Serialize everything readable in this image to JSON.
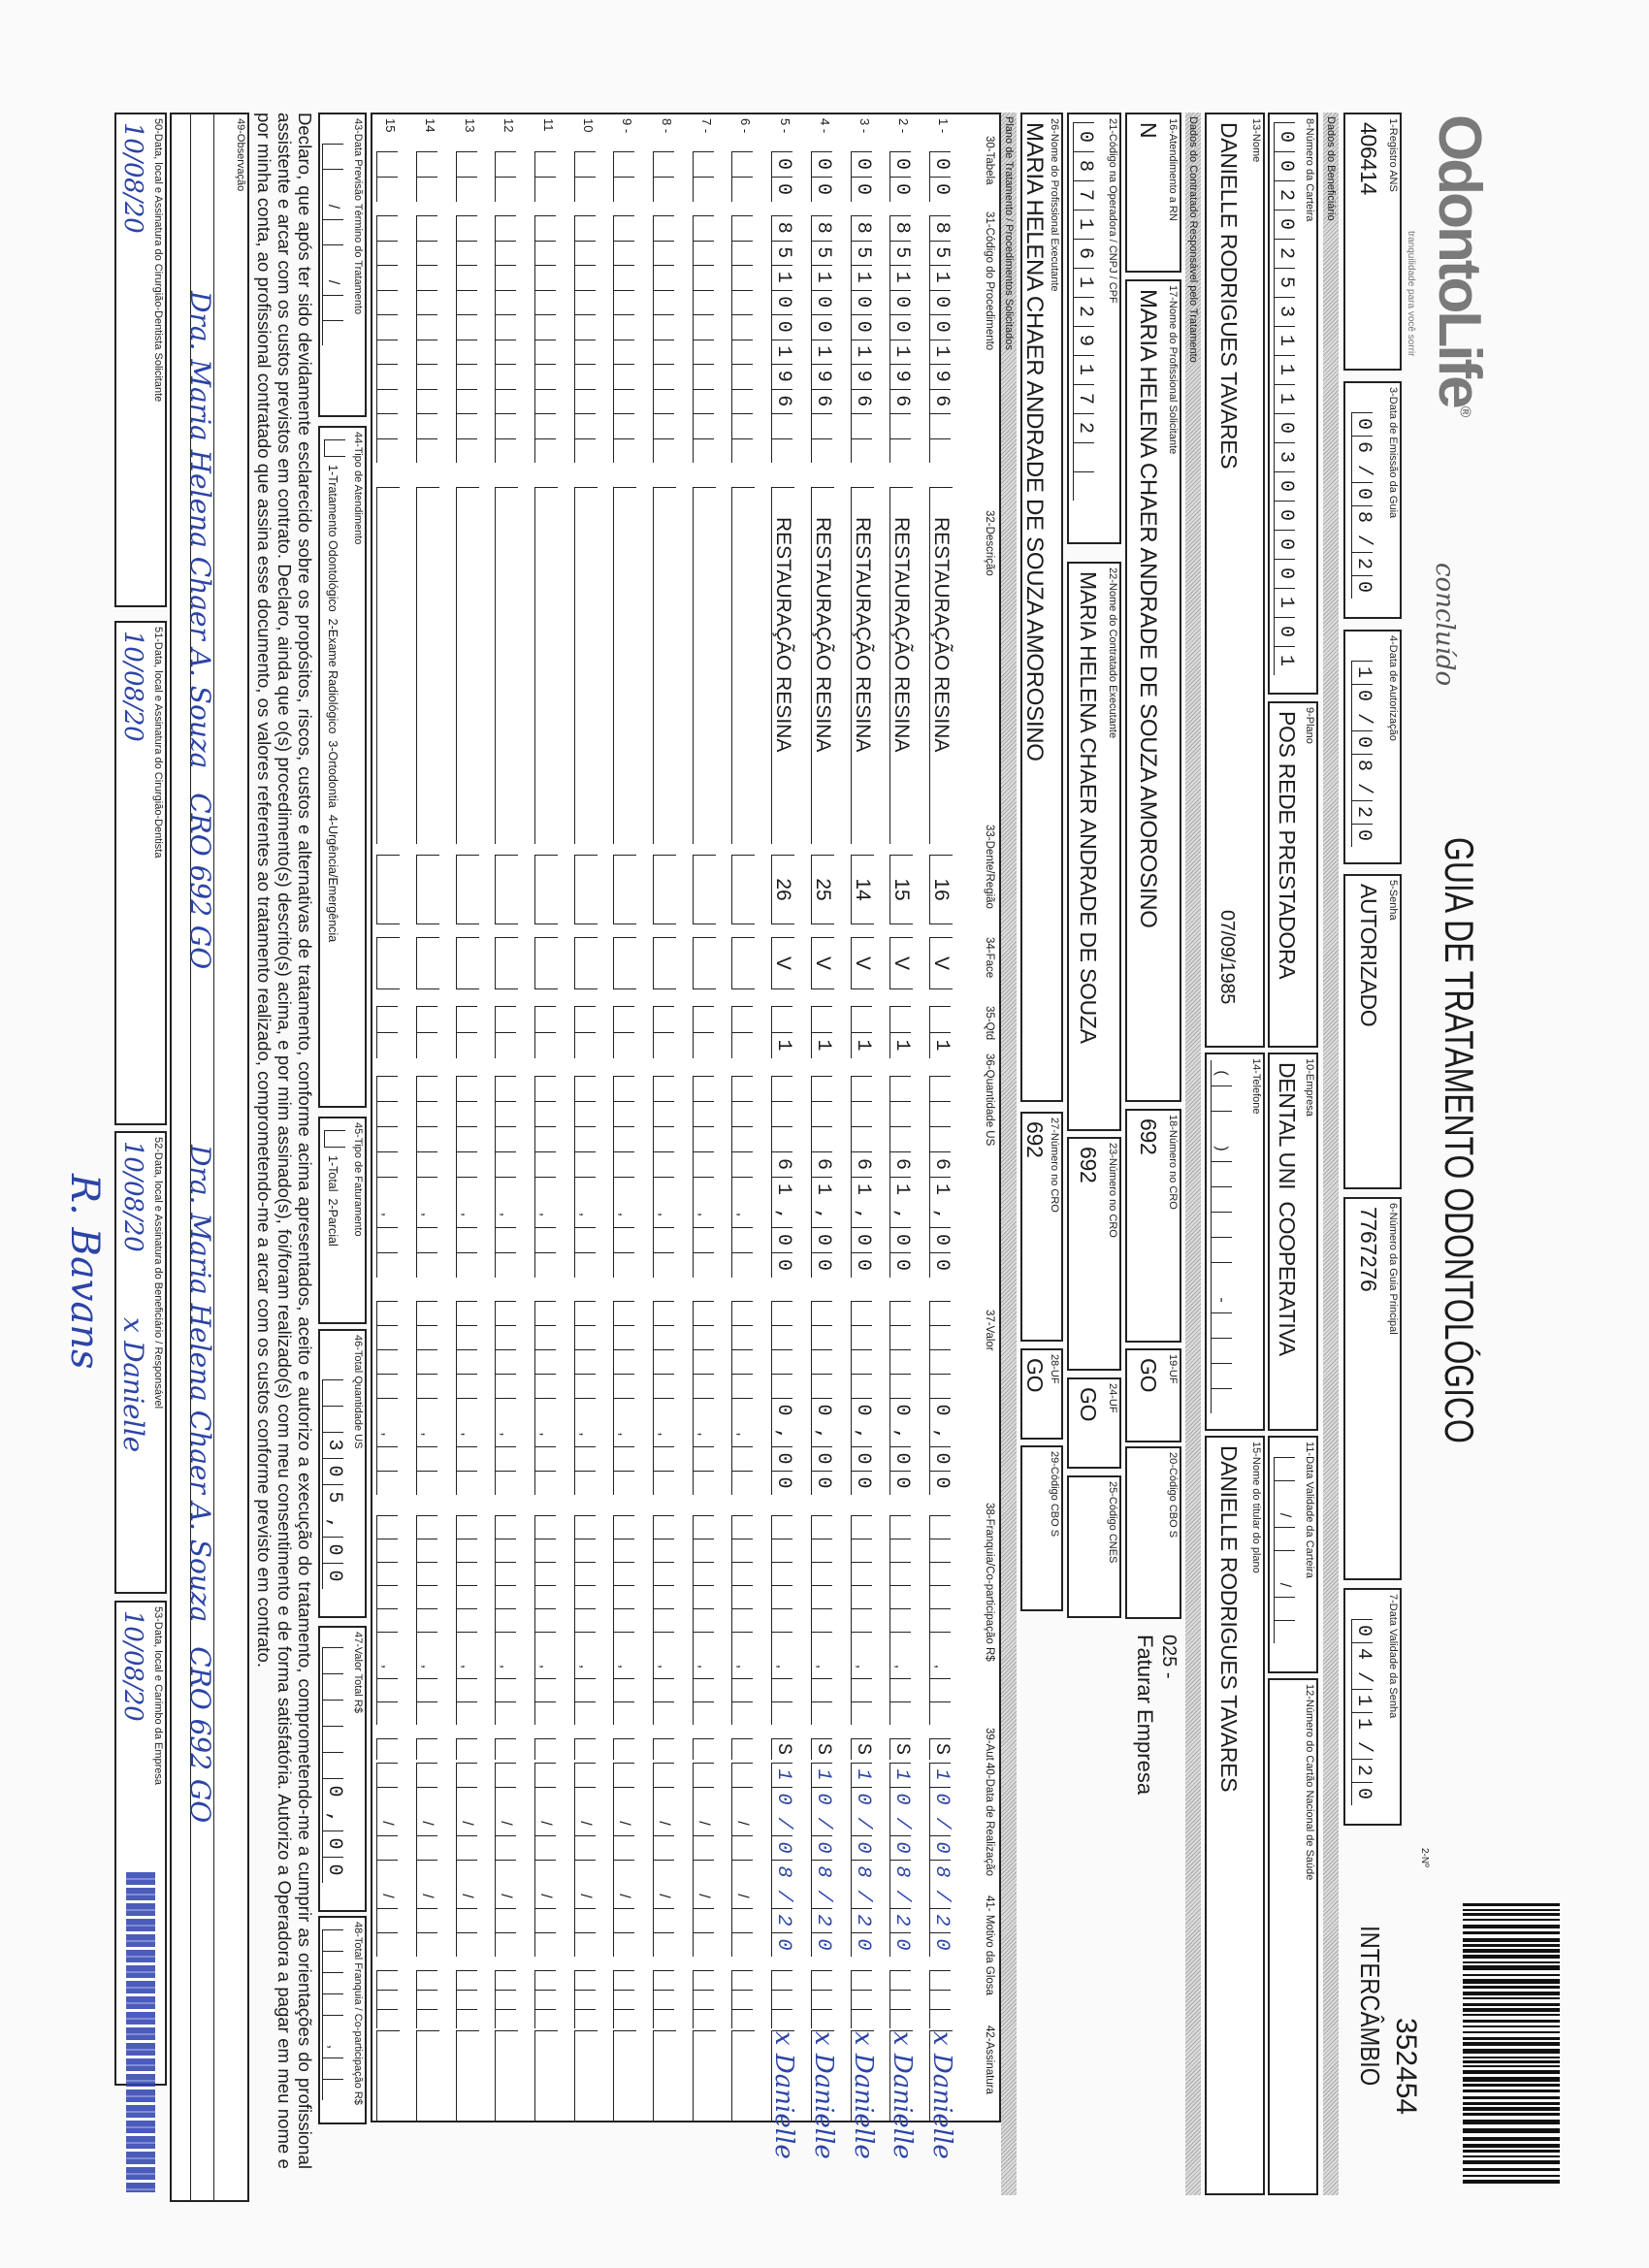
{
  "header": {
    "brand": "OdontoLife",
    "brand_mark": "®",
    "tagline": "tranquilidade para você sorrir",
    "annotation": "concluído",
    "title": "GUIA DE TRATAMENTO ODONTOLÓGICO",
    "guide_no_label": "2-Nº",
    "guide_no": "352454",
    "guide_type": "INTERCÂMBIO"
  },
  "guide": {
    "ans": {
      "label": "1-Registro ANS",
      "value": "406414"
    },
    "issue_date": {
      "label": "3-Data de Emissão da Guia",
      "value": "06/08/20"
    },
    "auth_date": {
      "label": "4-Data de Autorização",
      "value": "10/08/20"
    },
    "password": {
      "label": "5-Senha",
      "value": "AUTORIZADO"
    },
    "main_guide": {
      "label": "6-Número da Guia Principal",
      "value": "7767276"
    },
    "password_valid": {
      "label": "7-Data Validade da Senha",
      "value": "04/11/20"
    }
  },
  "beneficiary": {
    "section": "Dados do Beneficiário",
    "card": {
      "label": "8-Número da Carteira",
      "value": "0020253111030000101"
    },
    "plan": {
      "label": "9-Plano",
      "value": "POS REDE PRESTADORA"
    },
    "company": {
      "label": "10-Empresa",
      "value": "DENTAL UNI  COOPERATIVA"
    },
    "card_valid": {
      "label": "11-Data Validade da Carteira",
      "value": ""
    },
    "cns": {
      "label": "12-Número do Cartão Nacional de Saúde",
      "value": ""
    },
    "name": {
      "label": "13-Nome",
      "value": "DANIELLE RODRIGUES TAVARES",
      "birth": "07/09/1985"
    },
    "phone": {
      "label": "14-Telefone",
      "value": ""
    },
    "holder": {
      "label": "15-Nome do titular do plano",
      "value": "DANIELLE RODRIGUES TAVARES"
    }
  },
  "provider": {
    "section": "Dados do Contratado Responsável pelo Tratamento",
    "rn": {
      "label": "16-Atendimento a RN",
      "value": "N"
    },
    "requester": {
      "label": "17-Nome do Profissional Solicitante",
      "value": "MARIA HELENA CHAER ANDRADE DE SOUZA AMOROSINO"
    },
    "cro1": {
      "label": "18-Número no CRO",
      "value": "692"
    },
    "uf1": {
      "label": "19-UF",
      "value": "GO"
    },
    "cbo1": {
      "label": "20-Código CBO S",
      "value": ""
    },
    "billing_code": "025 -",
    "billing_note": "Faturar Empresa",
    "operator_code": {
      "label": "21-Código na Operadora / CNPJ / CPF",
      "value": "08716129172"
    },
    "executor": {
      "label": "22-Nome do Contratado Executante",
      "value": "MARIA HELENA CHAER ANDRADE DE SOUZA"
    },
    "cro2": {
      "label": "23-Número no CRO",
      "value": "692"
    },
    "uf2": {
      "label": "24-UF",
      "value": "GO"
    },
    "cnes": {
      "label": "25-Código CNES",
      "value": ""
    },
    "professional": {
      "label": "26-Nome do Profissional Executante",
      "value": "MARIA HELENA CHAER ANDRADE DE SOUZA AMOROSINO"
    },
    "cro3": {
      "label": "27-Número no CRO",
      "value": "692"
    },
    "uf3": {
      "label": "28-UF",
      "value": "GO"
    },
    "cbo3": {
      "label": "29-Código CBO S",
      "value": ""
    }
  },
  "plan": {
    "section": "Plano de Tratamento / Procedimentos Solicitados",
    "columns": [
      "30-Tabela",
      "31-Código do Procedimento",
      "32-Descrição",
      "33-Dente/Região",
      "34-Face",
      "35-Qtd",
      "36-Quantidade US",
      "37-Valor",
      "38-Franquia/Co-participação R$",
      "39-Aut",
      "40-Data de Realização",
      "41- Motivo da Glosa",
      "42-Assinatura"
    ],
    "rows": [
      {
        "n": "1 -",
        "table": "00",
        "code": "85100196",
        "desc": "RESTAURAÇÃO RESINA",
        "tooth": "16",
        "face": "V",
        "qty": "1",
        "us": "61,00",
        "value": "0,00",
        "copay": "",
        "aut": "S",
        "date": "10/08/20",
        "sign": "x Danielle"
      },
      {
        "n": "2 -",
        "table": "00",
        "code": "85100196",
        "desc": "RESTAURAÇÃO RESINA",
        "tooth": "15",
        "face": "V",
        "qty": "1",
        "us": "61,00",
        "value": "0,00",
        "copay": "",
        "aut": "S",
        "date": "10/08/20",
        "sign": "x Danielle"
      },
      {
        "n": "3 -",
        "table": "00",
        "code": "85100196",
        "desc": "RESTAURAÇÃO RESINA",
        "tooth": "14",
        "face": "V",
        "qty": "1",
        "us": "61,00",
        "value": "0,00",
        "copay": "",
        "aut": "S",
        "date": "10/08/20",
        "sign": "x Danielle"
      },
      {
        "n": "4 -",
        "table": "00",
        "code": "85100196",
        "desc": "RESTAURAÇÃO RESINA",
        "tooth": "25",
        "face": "V",
        "qty": "1",
        "us": "61,00",
        "value": "0,00",
        "copay": "",
        "aut": "S",
        "date": "10/08/20",
        "sign": "x Danielle"
      },
      {
        "n": "5 -",
        "table": "00",
        "code": "85100196",
        "desc": "RESTAURAÇÃO RESINA",
        "tooth": "26",
        "face": "V",
        "qty": "1",
        "us": "61,00",
        "value": "0,00",
        "copay": "",
        "aut": "S",
        "date": "10/08/20",
        "sign": "x Danielle"
      },
      {
        "n": "6 -"
      },
      {
        "n": "7 -"
      },
      {
        "n": "8 -"
      },
      {
        "n": "9 -"
      },
      {
        "n": "10"
      },
      {
        "n": "11"
      },
      {
        "n": "12"
      },
      {
        "n": "13"
      },
      {
        "n": "14"
      },
      {
        "n": "15"
      }
    ]
  },
  "totals": {
    "end_date": {
      "label": "43-Data Previsão Término do Tratamento",
      "value": ""
    },
    "service_type": {
      "label": "44-Tipo de Atendimento",
      "options": "1-Tratamento Odontológico  2-Exame Radiológico  3-Ortodontia  4-Urgência/Emergência"
    },
    "billing_type": {
      "label": "45-Tipo de Faturamento",
      "options": "1-Total  2-Parcial"
    },
    "total_us": {
      "label": "46-Total Quantidade US",
      "value": "305,00"
    },
    "total_value": {
      "label": "47-Valor Total R$",
      "value": "0,00"
    },
    "total_copay": {
      "label": "48-Total Franquia / Co-participação R$",
      "value": ""
    }
  },
  "declaration": "Declaro, que após ter sido devidamente esclarecido sobre os propósitos, riscos, custos e alternativas de tratamento, conforme acima apresentados, aceito e autorizo a execução do tratamento, comprometendo-me a cumprir as orientações do profissional assistente e arcar com os custos previstos em contrato. Declaro, ainda que o(s) procedimento(s) descrito(s) acima, e por mim assinado(s), foi/foram realizado(s) com meu consentimento e de forma satisfatória. Autorizo a Operadora a pagar em meu nome e por minha conta, ao profissional contratado que assina esse documento, os valores referentes ao tratamento realizado, comprometendo-me a arcar com os custos conforme previsto em contrato.",
  "observation": {
    "label": "49-Observação",
    "value": ""
  },
  "signatures": {
    "requester": {
      "label": "50-Data, local e Assinatura do Cirurgião-Dentista Solicitante",
      "date": "10/08/20"
    },
    "dentist": {
      "label": "51-Data, local e Assinatura do Cirurgião-Dentista",
      "date": "10/08/20"
    },
    "beneficiary": {
      "label": "52-Data, local e Assinatura do Beneficiário / Responsável",
      "date": "10/08/20",
      "sign": "x Danielle"
    },
    "company": {
      "label": "53-Data, local e Carimbo da Empresa",
      "date": "10/08/20"
    },
    "dentist_sign": "Dra. Maria Helena Chaer A. Souza",
    "dentist_cro": "CRO 692 GO",
    "extra_sign": "R. Bavans"
  },
  "colors": {
    "ink": "#1c1c1c",
    "handwriting": "#2c44a6",
    "paper": "#fafafa"
  }
}
